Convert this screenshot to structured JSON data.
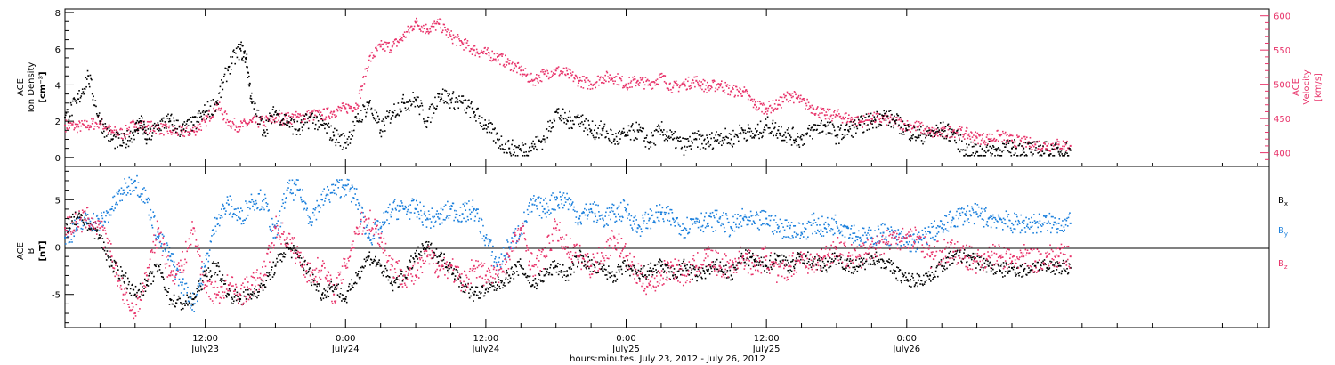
{
  "chart_data": [
    {
      "type": "scatter",
      "panel": "top",
      "left_axis_label_1": "ACE",
      "left_axis_label_2": "Ion Density",
      "left_axis_label_3": "[cm⁻³]",
      "right_axis_label_1": "ACE",
      "right_axis_label_2": "Velocity",
      "right_axis_label_3": "[km/s]",
      "ylim_left": [
        -0.5,
        8.2
      ],
      "ylim_right": [
        380,
        610
      ],
      "yticks_left": [
        "0",
        "2",
        "4",
        "6",
        "8"
      ],
      "yticks_right": [
        "400",
        "450",
        "500",
        "550",
        "600"
      ],
      "colors": {
        "density": "#000000",
        "velocity": "#e8336a"
      },
      "series": [
        {
          "axis": "left",
          "color": "#000000",
          "t": [
            0,
            1,
            2,
            3,
            4,
            5,
            6,
            6.5,
            7,
            8,
            9,
            10,
            11,
            12,
            13,
            14,
            15,
            15.5,
            16,
            17,
            18,
            19,
            20,
            21,
            22,
            23,
            24,
            25,
            26,
            27,
            28,
            29,
            30,
            31,
            32,
            33,
            34,
            35,
            36,
            37,
            38,
            39,
            40,
            41,
            42,
            43,
            44,
            45,
            46,
            47,
            48,
            49,
            50,
            51,
            52,
            53,
            54,
            55,
            56,
            57,
            58,
            59,
            60,
            61,
            62,
            63,
            64,
            65,
            66,
            67,
            68,
            69,
            70,
            71,
            72,
            73,
            74,
            75,
            76,
            77,
            78,
            79,
            80,
            81,
            82,
            83,
            84,
            85,
            86
          ],
          "values": [
            2.2,
            3,
            4.5,
            2,
            1,
            0.8,
            1.5,
            2,
            1,
            1.8,
            2,
            1.5,
            1.8,
            2.5,
            3,
            5,
            6,
            5.5,
            3,
            1.5,
            2.5,
            2,
            1.5,
            2.2,
            1.8,
            1.2,
            0.8,
            2,
            3,
            1.5,
            2.5,
            3,
            3.2,
            2,
            3.5,
            3.2,
            3,
            2.5,
            1.8,
            1,
            0.5,
            0.4,
            0.6,
            1,
            2.5,
            2,
            2.2,
            1.5,
            1.5,
            1,
            1.2,
            1.5,
            0.8,
            1.5,
            1,
            0.6,
            1,
            0.8,
            1.2,
            1,
            1.5,
            1.2,
            1.8,
            1.5,
            1.2,
            1,
            1.5,
            1.8,
            1.2,
            1.5,
            1.8,
            2,
            2.3,
            2,
            1.5,
            1.2,
            1.3,
            1.5,
            1.3,
            0.4,
            0.3,
            0.4,
            0.4,
            0.5,
            0.5,
            0.4,
            0.4,
            0.3,
            0.4
          ]
        },
        {
          "axis": "right",
          "color": "#e8336a",
          "t": [
            0,
            1,
            2,
            3,
            4,
            5,
            6,
            7,
            8,
            9,
            10,
            11,
            12,
            13,
            14,
            15,
            16,
            17,
            18,
            19,
            20,
            21,
            22,
            23,
            24,
            25,
            26,
            27,
            28,
            29,
            30,
            31,
            32,
            33,
            34,
            35,
            36,
            37,
            38,
            39,
            40,
            41,
            42,
            43,
            44,
            45,
            46,
            47,
            48,
            49,
            50,
            51,
            52,
            53,
            54,
            55,
            56,
            57,
            58,
            59,
            60,
            61,
            62,
            63,
            64,
            65,
            66,
            67,
            68,
            69,
            70,
            71,
            72,
            73,
            74,
            75,
            76,
            77,
            78,
            79,
            80,
            81,
            82,
            83,
            84,
            85,
            86
          ],
          "values": [
            440,
            438,
            440,
            445,
            430,
            428,
            442,
            438,
            436,
            432,
            430,
            432,
            445,
            470,
            445,
            438,
            445,
            445,
            450,
            450,
            452,
            455,
            455,
            460,
            465,
            470,
            535,
            555,
            555,
            570,
            590,
            580,
            588,
            570,
            560,
            550,
            545,
            540,
            530,
            520,
            505,
            515,
            520,
            515,
            505,
            500,
            510,
            510,
            500,
            505,
            500,
            510,
            495,
            500,
            505,
            495,
            500,
            490,
            490,
            470,
            465,
            470,
            485,
            475,
            465,
            455,
            455,
            450,
            445,
            450,
            450,
            445,
            440,
            438,
            430,
            428,
            432,
            428,
            422,
            420,
            425,
            418,
            415,
            412,
            410,
            412,
            410
          ]
        }
      ]
    },
    {
      "type": "scatter",
      "panel": "bottom",
      "left_axis_label_1": "ACE",
      "left_axis_label_2": "B",
      "left_axis_label_3": "[nT]",
      "ylim": [
        -8.5,
        8.5
      ],
      "yticks": [
        "-5",
        "0",
        "5"
      ],
      "legend": [
        "B",
        "B",
        "B"
      ],
      "legend_subscripts": [
        "x",
        "y",
        "z"
      ],
      "colors": {
        "bx": "#000000",
        "by": "#1a7fdc",
        "bz": "#e8336a"
      },
      "series": [
        {
          "name": "Bx",
          "color": "#000000",
          "t": [
            0,
            1,
            2,
            3,
            4,
            5,
            6,
            7,
            8,
            9,
            10,
            11,
            12,
            13,
            14,
            15,
            16,
            17,
            18,
            19,
            20,
            21,
            22,
            23,
            24,
            25,
            26,
            27,
            28,
            29,
            30,
            31,
            32,
            33,
            34,
            35,
            36,
            37,
            38,
            39,
            40,
            41,
            42,
            43,
            44,
            45,
            46,
            47,
            48,
            49,
            50,
            51,
            52,
            53,
            54,
            55,
            56,
            57,
            58,
            59,
            60,
            61,
            62,
            63,
            64,
            65,
            66,
            67,
            68,
            69,
            70,
            71,
            72,
            73,
            74,
            75,
            76,
            77,
            78,
            79,
            80,
            81,
            82,
            83,
            84,
            85,
            86
          ],
          "values": [
            2,
            3,
            2.5,
            1,
            -2,
            -3,
            -5,
            -4,
            -2,
            -5.5,
            -6,
            -5.5,
            -3,
            -2,
            -5,
            -5.5,
            -5,
            -4,
            -2,
            0,
            -1,
            -3,
            -5,
            -4,
            -5.5,
            -3,
            -1,
            -2,
            -4,
            -3,
            -1,
            0,
            -1,
            -2,
            -4,
            -5,
            -4.5,
            -4,
            -3,
            -2,
            -4,
            -3,
            -2,
            -3,
            -1,
            -2,
            -2.5,
            -3,
            -2,
            -3,
            -2.5,
            -2,
            -3,
            -2,
            -3,
            -2.5,
            -2,
            -3,
            -1,
            -1.5,
            -2,
            -1,
            -2,
            -1,
            -1.5,
            -2,
            -1,
            -2,
            -2,
            -1,
            -1.5,
            -2.5,
            -3.5,
            -3.5,
            -3,
            -2,
            -1,
            -1,
            -1.5,
            -2,
            -2.5,
            -2.2,
            -2.5,
            -2,
            -2.2,
            -2,
            -2.2
          ]
        },
        {
          "name": "By",
          "color": "#1a7fdc",
          "t": [
            0,
            1,
            2,
            3,
            4,
            5,
            6,
            7,
            8,
            9,
            10,
            11,
            12,
            13,
            14,
            15,
            16,
            17,
            18,
            19,
            20,
            21,
            22,
            23,
            24,
            25,
            26,
            27,
            28,
            29,
            30,
            31,
            32,
            33,
            34,
            35,
            36,
            37,
            38,
            39,
            40,
            41,
            42,
            43,
            44,
            45,
            46,
            47,
            48,
            49,
            50,
            51,
            52,
            53,
            54,
            55,
            56,
            57,
            58,
            59,
            60,
            61,
            62,
            63,
            64,
            65,
            66,
            67,
            68,
            69,
            70,
            71,
            72,
            73,
            74,
            75,
            76,
            77,
            78,
            79,
            80,
            81,
            82,
            83,
            84,
            85,
            86
          ],
          "values": [
            1,
            2,
            3,
            2.5,
            4,
            6,
            7,
            5,
            1,
            -1,
            -4,
            -6,
            -2,
            3,
            4.5,
            3,
            5,
            5,
            1,
            6,
            6,
            3,
            5,
            6,
            6.5,
            5,
            1,
            2,
            4,
            4,
            4,
            3,
            3,
            4,
            3.5,
            4,
            1,
            -2,
            0,
            2,
            4.5,
            4,
            5,
            5,
            3,
            4,
            3,
            3.5,
            4,
            2,
            3,
            3.5,
            3,
            2,
            3,
            2.5,
            3,
            2,
            3,
            2.5,
            3,
            2,
            2,
            1.5,
            2.5,
            2,
            2.5,
            2,
            1,
            1,
            1.5,
            1,
            0.5,
            0.5,
            1.5,
            2,
            3,
            3.5,
            3.5,
            3,
            3,
            2.5,
            2.5,
            2.5,
            2.5,
            2.5,
            2.5
          ]
        },
        {
          "name": "Bz",
          "color": "#e8336a",
          "t": [
            0,
            1,
            2,
            3,
            4,
            5,
            6,
            7,
            8,
            9,
            10,
            11,
            12,
            13,
            14,
            15,
            16,
            17,
            18,
            19,
            20,
            21,
            22,
            23,
            24,
            25,
            26,
            27,
            28,
            29,
            30,
            31,
            32,
            33,
            34,
            35,
            36,
            37,
            38,
            39,
            40,
            41,
            42,
            43,
            44,
            45,
            46,
            47,
            48,
            49,
            50,
            51,
            52,
            53,
            54,
            55,
            56,
            57,
            58,
            59,
            60,
            61,
            62,
            63,
            64,
            65,
            66,
            67,
            68,
            69,
            70,
            71,
            72,
            73,
            74,
            75,
            76,
            77,
            78,
            79,
            80,
            81,
            82,
            83,
            84,
            85,
            86
          ],
          "values": [
            2,
            2.5,
            3,
            2,
            -1,
            -5,
            -7,
            -3,
            2,
            -3,
            -2,
            2,
            -4,
            -5,
            -4,
            -5,
            -4,
            -3,
            2,
            1,
            -1,
            -3,
            -2,
            -5,
            -2,
            2,
            3,
            1,
            -2,
            -3,
            -3,
            -1,
            -2,
            -2,
            -4,
            -2,
            -3,
            -3,
            -1,
            2,
            -2,
            -1,
            2,
            0,
            -1,
            -2,
            -1,
            1,
            -1,
            -3,
            -4,
            -3,
            -2,
            -3,
            -2,
            -1,
            -2,
            -2,
            -1,
            -2,
            -1,
            -3,
            -2,
            -1,
            -2,
            -1,
            0,
            -1,
            -1,
            0,
            0.5,
            1,
            1,
            1,
            -1,
            -0.5,
            -0.5,
            -1,
            -1.5,
            -1,
            -1,
            -1.5,
            -1,
            -1.5,
            -1,
            -1,
            -1
          ]
        }
      ]
    }
  ],
  "x_axis": {
    "tick_times": [
      "12:00",
      "0:00",
      "12:00",
      "0:00",
      "12:00",
      "0:00"
    ],
    "tick_dates": [
      "July23",
      "July24",
      "July24",
      "July25",
      "July25",
      "July26"
    ],
    "xlabel": "hours:minutes, July 23, 2012 - July 26, 2012"
  }
}
